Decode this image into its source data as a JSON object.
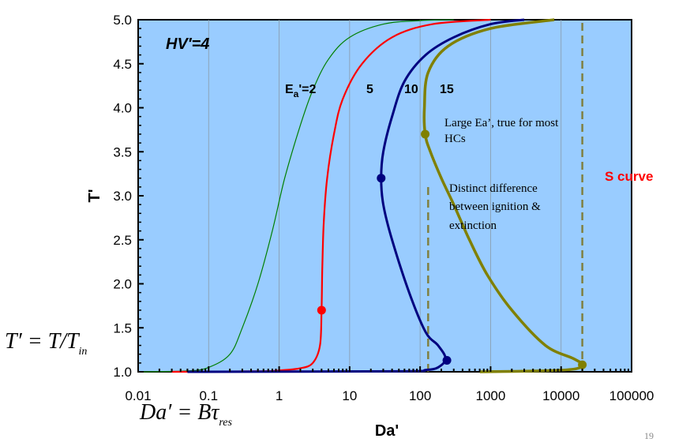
{
  "chart_data": {
    "type": "line",
    "xscale": "log",
    "xlim": [
      0.01,
      100000
    ],
    "ylim": [
      1.0,
      5.0
    ],
    "x_ticks": [
      0.01,
      0.1,
      1,
      10,
      100,
      1000,
      10000,
      100000
    ],
    "x_tick_labels": [
      "0.01",
      "0.1",
      "1",
      "10",
      "100",
      "1000",
      "10000",
      "100000"
    ],
    "y_ticks": [
      1.0,
      1.5,
      2.0,
      2.5,
      3.0,
      3.5,
      4.0,
      4.5,
      5.0
    ],
    "y_tick_labels": [
      "1.0",
      "1.5",
      "2.0",
      "2.5",
      "3.0",
      "3.5",
      "4.0",
      "4.5",
      "5.0"
    ],
    "xlabel": "Da'",
    "ylabel": "T'",
    "grid": "vertical",
    "background": "#99ccff",
    "series": [
      {
        "name": "2",
        "color": "#008000",
        "points": [
          [
            0.01,
            1.0
          ],
          [
            0.05,
            1.01
          ],
          [
            0.1,
            1.05
          ],
          [
            0.2,
            1.2
          ],
          [
            0.3,
            1.5
          ],
          [
            0.5,
            2.0
          ],
          [
            0.8,
            2.6
          ],
          [
            1.2,
            3.2
          ],
          [
            2,
            3.8
          ],
          [
            3,
            4.2
          ],
          [
            5,
            4.55
          ],
          [
            10,
            4.8
          ],
          [
            30,
            4.95
          ],
          [
            100,
            4.99
          ],
          [
            300,
            5.0
          ]
        ]
      },
      {
        "name": "5",
        "color": "#ff0000",
        "points": [
          [
            0.03,
            1.0
          ],
          [
            0.5,
            1.005
          ],
          [
            1,
            1.015
          ],
          [
            2,
            1.04
          ],
          [
            3,
            1.1
          ],
          [
            3.8,
            1.3
          ],
          [
            4.0,
            1.7
          ],
          [
            4.1,
            2.2
          ],
          [
            4.3,
            2.7
          ],
          [
            4.8,
            3.2
          ],
          [
            6,
            3.7
          ],
          [
            8,
            4.1
          ],
          [
            15,
            4.5
          ],
          [
            40,
            4.8
          ],
          [
            150,
            4.95
          ],
          [
            1000,
            5.0
          ]
        ]
      },
      {
        "name": "10",
        "color": "#000080",
        "points": [
          [
            0.05,
            1.0
          ],
          [
            50,
            1.005
          ],
          [
            120,
            1.02
          ],
          [
            180,
            1.05
          ],
          [
            230,
            1.15
          ],
          [
            180,
            1.3
          ],
          [
            120,
            1.45
          ],
          [
            70,
            1.9
          ],
          [
            40,
            2.5
          ],
          [
            30,
            2.9
          ],
          [
            28,
            3.2
          ],
          [
            30,
            3.5
          ],
          [
            40,
            3.9
          ],
          [
            60,
            4.3
          ],
          [
            120,
            4.6
          ],
          [
            300,
            4.8
          ],
          [
            1000,
            4.95
          ],
          [
            3000,
            5.0
          ]
        ]
      },
      {
        "name": "15",
        "color": "#808000",
        "points": [
          [
            700,
            1.0
          ],
          [
            5000,
            1.01
          ],
          [
            15000,
            1.03
          ],
          [
            20000,
            1.08
          ],
          [
            15000,
            1.15
          ],
          [
            6000,
            1.3
          ],
          [
            2000,
            1.7
          ],
          [
            900,
            2.1
          ],
          [
            500,
            2.5
          ],
          [
            300,
            2.9
          ],
          [
            200,
            3.2
          ],
          [
            140,
            3.5
          ],
          [
            118,
            3.7
          ],
          [
            115,
            4.0
          ],
          [
            130,
            4.4
          ],
          [
            250,
            4.7
          ],
          [
            1000,
            4.9
          ],
          [
            8000,
            5.0
          ]
        ]
      }
    ],
    "markers": [
      {
        "x": 4.0,
        "y": 1.7,
        "color": "#ff0000"
      },
      {
        "x": 28,
        "y": 3.2,
        "color": "#000080"
      },
      {
        "x": 240,
        "y": 1.13,
        "color": "#000080"
      },
      {
        "x": 118,
        "y": 3.7,
        "color": "#808000"
      },
      {
        "x": 20000,
        "y": 1.08,
        "color": "#808000"
      }
    ],
    "dashed_lines": [
      {
        "x": 130,
        "y_from": 1.0,
        "y_to": 3.1,
        "color": "#808040"
      },
      {
        "x": 20000,
        "y_from": 1.0,
        "y_to": 5.0,
        "color": "#808040"
      }
    ]
  },
  "annotations": {
    "hv_label": "HV′=4",
    "ea_label_main": "E",
    "ea_label_sub": "a",
    "ea_label_rest": "'=2",
    "label_5": "5",
    "label_10": "10",
    "label_15": "15",
    "large_ea_line1": "Large Ea’, true for most",
    "large_ea_line2": "HCs",
    "distinct_line1": "Distinct difference",
    "distinct_line2": "between ignition &",
    "distinct_line3": "extinction",
    "s_curve": "S curve"
  },
  "formulas": {
    "t_main": "T′ = T/T",
    "t_sub": "in",
    "da_main": "Da′ = Bτ",
    "da_sub": "res"
  },
  "slide_number": "19"
}
